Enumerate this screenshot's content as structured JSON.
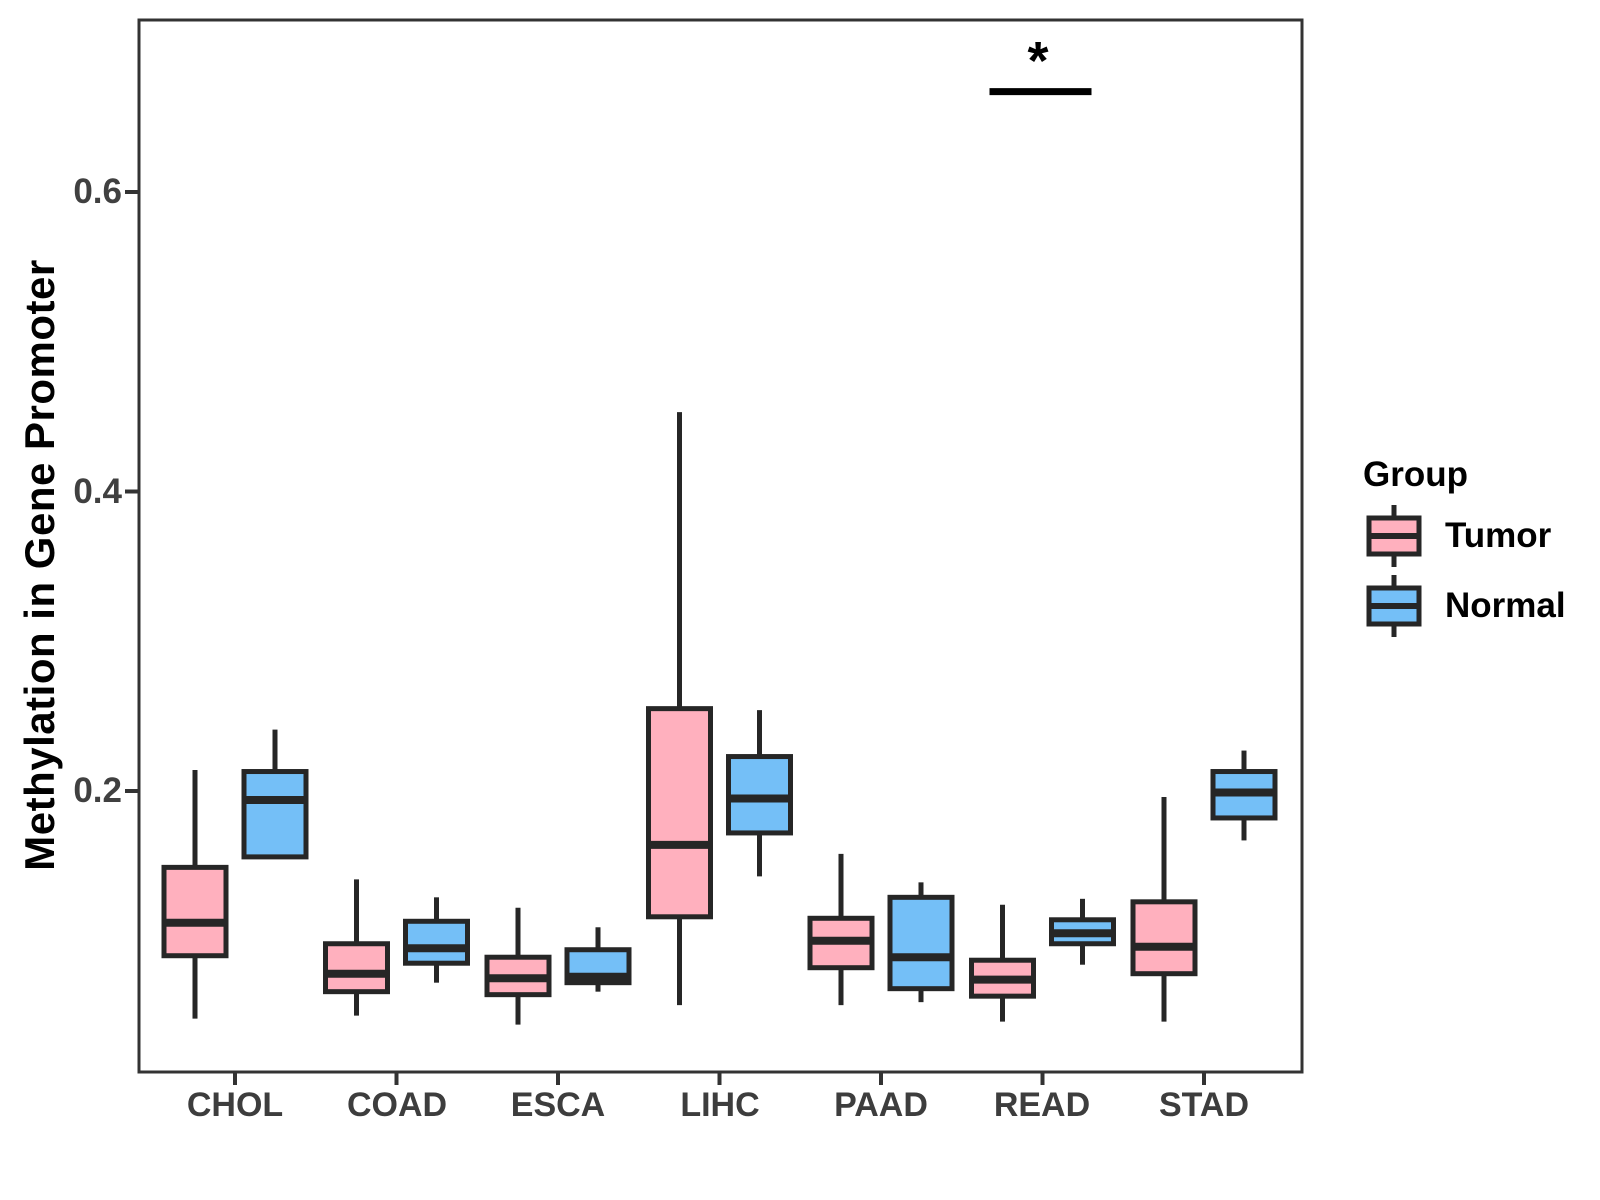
{
  "chart_data": {
    "type": "boxplot",
    "title": "",
    "xlabel": "",
    "ylabel": "Methylation in Gene Promoter",
    "categories": [
      "CHOL",
      "COAD",
      "ESCA",
      "LIHC",
      "PAAD",
      "READ",
      "STAD"
    ],
    "ytick_labels": [
      "0.2",
      "0.4",
      "0.6"
    ],
    "ytick_values": [
      0.2,
      0.4,
      0.6
    ],
    "ylim": [
      0.012,
      0.715
    ],
    "grid": "off",
    "legend": {
      "title": "Group",
      "position": "right",
      "entries": [
        {
          "label": "Tumor",
          "color": "#FFB0BE"
        },
        {
          "label": "Normal",
          "color": "#74BFF7"
        }
      ]
    },
    "series": [
      {
        "name": "Tumor",
        "fill": "#FFB0BE",
        "boxes": [
          {
            "category": "CHOL",
            "whisker_low": 0.048,
            "q1": 0.09,
            "median": 0.112,
            "q3": 0.149,
            "whisker_high": 0.214
          },
          {
            "category": "COAD",
            "whisker_low": 0.05,
            "q1": 0.066,
            "median": 0.078,
            "q3": 0.098,
            "whisker_high": 0.141
          },
          {
            "category": "ESCA",
            "whisker_low": 0.044,
            "q1": 0.064,
            "median": 0.075,
            "q3": 0.089,
            "whisker_high": 0.122
          },
          {
            "category": "LIHC",
            "whisker_low": 0.057,
            "q1": 0.116,
            "median": 0.164,
            "q3": 0.255,
            "whisker_high": 0.453
          },
          {
            "category": "PAAD",
            "whisker_low": 0.057,
            "q1": 0.082,
            "median": 0.1,
            "q3": 0.115,
            "whisker_high": 0.158
          },
          {
            "category": "READ",
            "whisker_low": 0.046,
            "q1": 0.063,
            "median": 0.074,
            "q3": 0.087,
            "whisker_high": 0.124
          },
          {
            "category": "STAD",
            "whisker_low": 0.046,
            "q1": 0.078,
            "median": 0.096,
            "q3": 0.126,
            "whisker_high": 0.196
          }
        ]
      },
      {
        "name": "Normal",
        "fill": "#74BFF7",
        "boxes": [
          {
            "category": "CHOL",
            "whisker_low": 0.156,
            "q1": 0.156,
            "median": 0.194,
            "q3": 0.213,
            "whisker_high": 0.241
          },
          {
            "category": "COAD",
            "whisker_low": 0.072,
            "q1": 0.085,
            "median": 0.095,
            "q3": 0.113,
            "whisker_high": 0.129
          },
          {
            "category": "ESCA",
            "whisker_low": 0.066,
            "q1": 0.072,
            "median": 0.076,
            "q3": 0.094,
            "whisker_high": 0.109
          },
          {
            "category": "LIHC",
            "whisker_low": 0.143,
            "q1": 0.172,
            "median": 0.195,
            "q3": 0.223,
            "whisker_high": 0.254
          },
          {
            "category": "PAAD",
            "whisker_low": 0.059,
            "q1": 0.068,
            "median": 0.089,
            "q3": 0.129,
            "whisker_high": 0.139
          },
          {
            "category": "READ",
            "whisker_low": 0.084,
            "q1": 0.098,
            "median": 0.105,
            "q3": 0.114,
            "whisker_high": 0.128
          },
          {
            "category": "STAD",
            "whisker_low": 0.167,
            "q1": 0.182,
            "median": 0.199,
            "q3": 0.213,
            "whisker_high": 0.227
          }
        ]
      }
    ],
    "annotation": {
      "symbol": "*",
      "category": "READ",
      "between": [
        "Tumor",
        "Normal"
      ],
      "bar_value": 0.667
    },
    "colors": {
      "box_stroke": "#262626",
      "panel_border": "#333333",
      "axis_text": "#404040",
      "annotation": "#000000"
    }
  }
}
